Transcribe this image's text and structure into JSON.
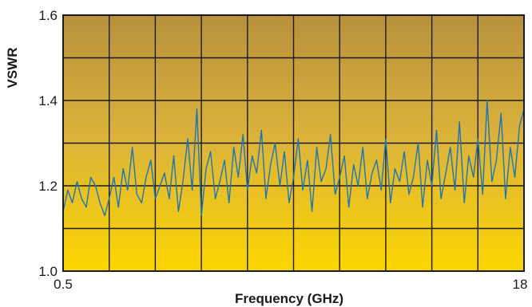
{
  "chart_data": {
    "type": "line",
    "title": "",
    "xlabel": "Frequency (GHz)",
    "ylabel": "VSWR",
    "xlim": [
      0.5,
      18
    ],
    "ylim": [
      1.0,
      1.6
    ],
    "x_tick_labels": [
      "0.5",
      "18"
    ],
    "y_tick_labels": [
      "1.0",
      "1.2",
      "1.4",
      "1.6"
    ],
    "grid": true,
    "grid_columns": 10,
    "grid_rows": 6,
    "legend": "none",
    "colors": {
      "background_top": "#b8903c",
      "background_mid": "#dcb43a",
      "background_bottom": "#fcd600",
      "line": "#1f74b4",
      "grid": "#1a1a1a"
    },
    "series": [
      {
        "x": [
          0.5,
          0.68,
          0.85,
          1.03,
          1.2,
          1.38,
          1.55,
          1.73,
          1.9,
          2.08,
          2.25,
          2.43,
          2.6,
          2.78,
          2.95,
          3.13,
          3.3,
          3.48,
          3.65,
          3.83,
          4.0,
          4.18,
          4.35,
          4.53,
          4.7,
          4.88,
          5.05,
          5.23,
          5.4,
          5.58,
          5.75,
          5.93,
          6.1,
          6.28,
          6.45,
          6.63,
          6.8,
          6.98,
          7.15,
          7.33,
          7.5,
          7.68,
          7.85,
          8.03,
          8.2,
          8.38,
          8.55,
          8.73,
          8.9,
          9.08,
          9.25,
          9.43,
          9.6,
          9.78,
          9.95,
          10.13,
          10.3,
          10.48,
          10.65,
          10.83,
          11.0,
          11.18,
          11.35,
          11.53,
          11.7,
          11.88,
          12.05,
          12.23,
          12.4,
          12.58,
          12.75,
          12.93,
          13.1,
          13.28,
          13.45,
          13.63,
          13.8,
          13.98,
          14.15,
          14.33,
          14.5,
          14.68,
          14.85,
          15.03,
          15.2,
          15.38,
          15.55,
          15.73,
          15.9,
          16.08,
          16.25,
          16.43,
          16.6,
          16.78,
          16.95,
          17.13,
          17.3,
          17.48,
          17.65,
          17.83,
          18.0
        ],
        "y": [
          1.14,
          1.19,
          1.16,
          1.21,
          1.17,
          1.15,
          1.22,
          1.2,
          1.16,
          1.13,
          1.17,
          1.22,
          1.15,
          1.24,
          1.19,
          1.29,
          1.18,
          1.16,
          1.22,
          1.26,
          1.17,
          1.2,
          1.23,
          1.17,
          1.27,
          1.14,
          1.21,
          1.31,
          1.19,
          1.38,
          1.13,
          1.24,
          1.28,
          1.17,
          1.21,
          1.26,
          1.16,
          1.29,
          1.22,
          1.32,
          1.19,
          1.27,
          1.23,
          1.33,
          1.17,
          1.25,
          1.3,
          1.2,
          1.28,
          1.16,
          1.22,
          1.31,
          1.19,
          1.26,
          1.14,
          1.29,
          1.21,
          1.24,
          1.32,
          1.18,
          1.22,
          1.27,
          1.15,
          1.25,
          1.2,
          1.29,
          1.17,
          1.23,
          1.26,
          1.19,
          1.31,
          1.16,
          1.24,
          1.21,
          1.28,
          1.18,
          1.22,
          1.3,
          1.15,
          1.26,
          1.2,
          1.33,
          1.17,
          1.23,
          1.29,
          1.19,
          1.35,
          1.16,
          1.27,
          1.22,
          1.31,
          1.18,
          1.4,
          1.21,
          1.26,
          1.37,
          1.17,
          1.29,
          1.22,
          1.34,
          1.38
        ]
      }
    ]
  }
}
